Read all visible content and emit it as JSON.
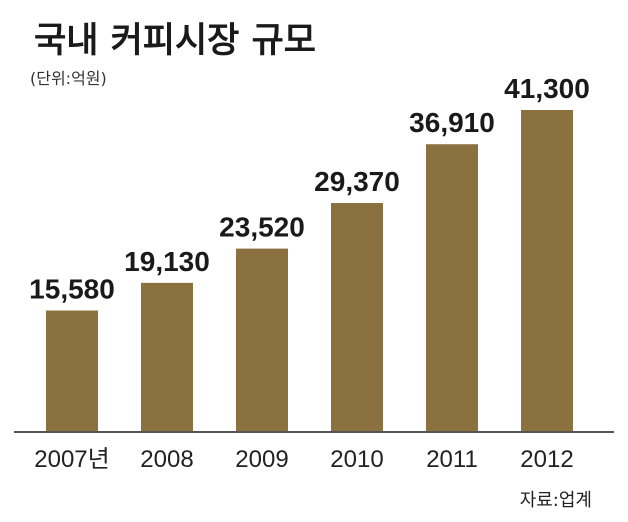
{
  "chart_data": {
    "type": "bar",
    "title": "국내 커피시장 규모",
    "subtitle": "(단위:억원)",
    "categories": [
      "2007년",
      "2008",
      "2009",
      "2010",
      "2011",
      "2012"
    ],
    "values": [
      15580,
      19130,
      23520,
      29370,
      36910,
      41300
    ],
    "value_labels": [
      "15,580",
      "19,130",
      "23,520",
      "29,370",
      "36,910",
      "41,300"
    ],
    "source": "자료:업계",
    "bar_color": "#8b7040",
    "ylim": [
      0,
      41300
    ],
    "grid": false,
    "legend": "none"
  }
}
